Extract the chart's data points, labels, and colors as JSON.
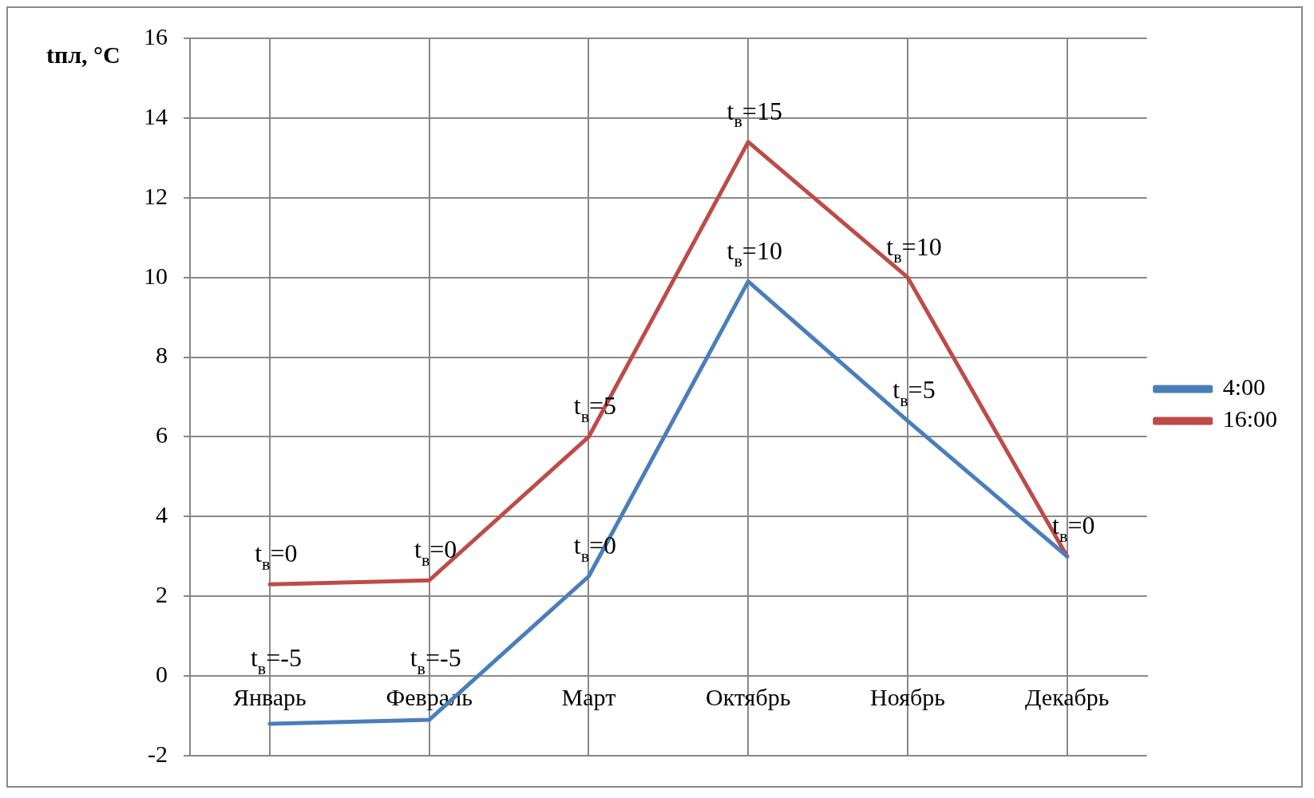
{
  "chart_data": {
    "type": "line",
    "ylabel": "tпл, °C",
    "categories": [
      "Январь",
      "Февраль",
      "Март",
      "Октябрь",
      "Ноябрь",
      "Декабрь"
    ],
    "series": [
      {
        "name": "4:00",
        "color": "#4a7ebb",
        "values": [
          -1.2,
          -1.1,
          2.5,
          9.9,
          6.4,
          3.0
        ]
      },
      {
        "name": "16:00",
        "color": "#be4b48",
        "values": [
          2.3,
          2.4,
          6.0,
          13.4,
          10.0,
          3.0
        ]
      }
    ],
    "ylim": [
      -2,
      16
    ],
    "yticks": [
      -2,
      0,
      2,
      4,
      6,
      8,
      10,
      12,
      14,
      16
    ],
    "grid": true,
    "legend": "right",
    "marker": "none",
    "line_style": "solid",
    "annotations": [
      {
        "text": "t$_{в}$=-5",
        "x": "Январь",
        "y": -1.2
      },
      {
        "text": "t$_{в}$=-5",
        "x": "Февраль",
        "y": -1.1
      },
      {
        "text": "t$_{в}$=0",
        "x": "Март",
        "y": 2.5
      },
      {
        "text": "t$_{в}$=10",
        "x": "Октябрь",
        "y": 9.9
      },
      {
        "text": "t$_{в}$=5",
        "x": "Ноябрь",
        "y": 6.4
      },
      {
        "text": "t$_{в}$=0",
        "x": "Декабрь",
        "y": 3.0
      },
      {
        "text": "t$_{в}$=0",
        "x": "Январь",
        "y": 2.3
      },
      {
        "text": "t$_{в}$=0",
        "x": "Февраль",
        "y": 2.4
      },
      {
        "text": "t$_{в}$=5",
        "x": "Март",
        "y": 6.0
      },
      {
        "text": "t$_{в}$=15",
        "x": "Октябрь",
        "y": 13.4
      },
      {
        "text": "t$_{в}$=10",
        "x": "Ноябрь",
        "y": 10.0
      }
    ]
  }
}
